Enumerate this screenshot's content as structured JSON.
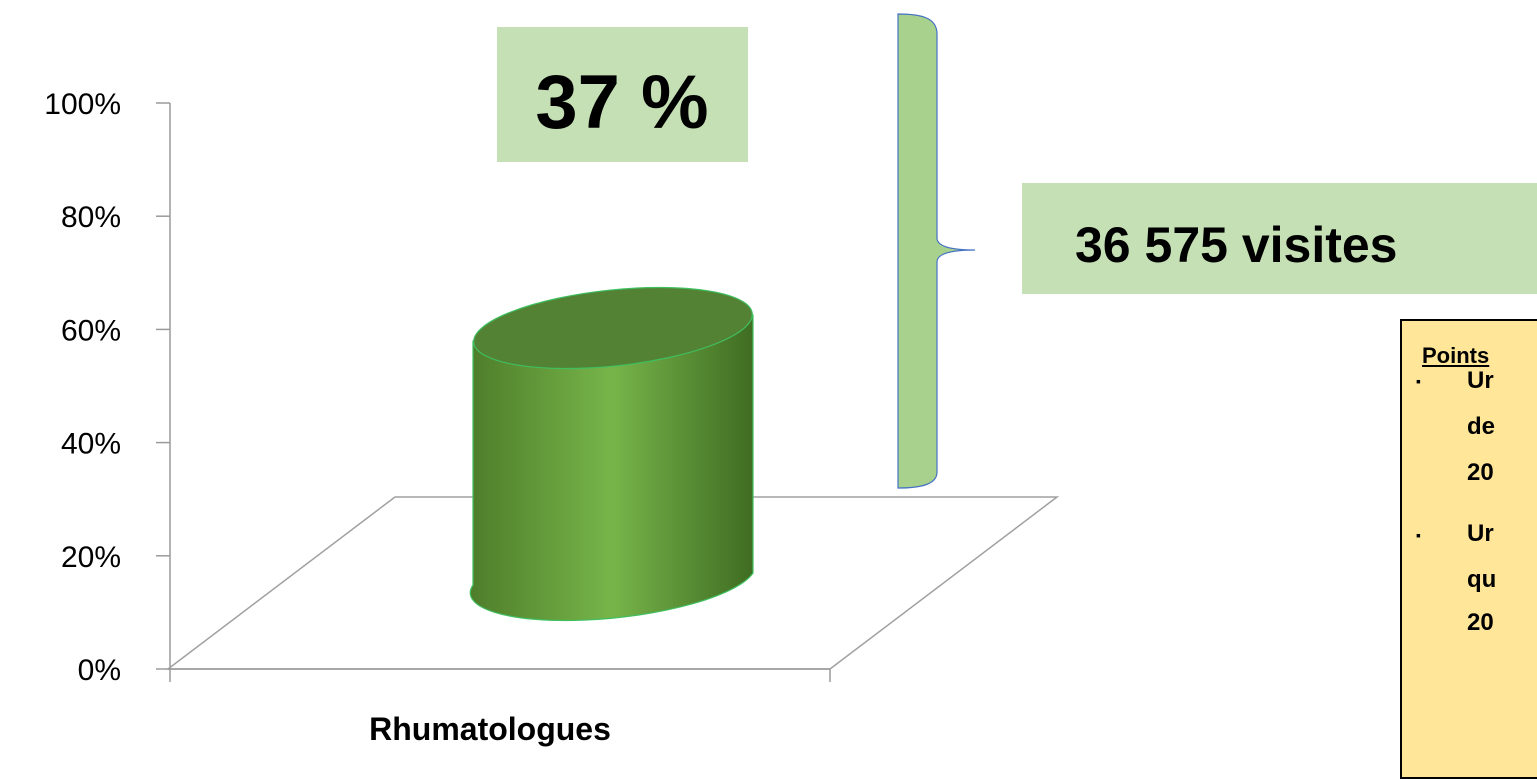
{
  "chart_data": {
    "type": "bar",
    "categories": [
      "Rhumatologues"
    ],
    "values": [
      37
    ],
    "ylim": [
      0,
      100
    ],
    "yticks": [
      "0%",
      "20%",
      "40%",
      "60%",
      "80%",
      "100%"
    ],
    "value_label": "37 %",
    "brace_label": "36 575 visites",
    "bar_color": "#6aa84f"
  },
  "side_box": {
    "title": "Points",
    "bullet_glyph": "▪",
    "fragments": [
      "Ur",
      "de",
      "20",
      "Ur",
      "qu",
      "20"
    ]
  },
  "colors": {
    "label_box": "#c5e0b4",
    "brace": "#a9d18e",
    "note_box": "#ffe699"
  }
}
